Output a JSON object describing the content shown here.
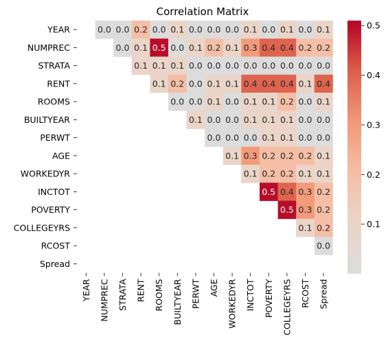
{
  "chart_data": {
    "type": "heatmap",
    "title": "Correlation Matrix",
    "labels": [
      "YEAR",
      "NUMPREC",
      "STRATA",
      "RENT",
      "ROOMS",
      "BUILTYEAR",
      "PERWT",
      "AGE",
      "WORKEDYR",
      "INCTOT",
      "POVERTY",
      "COLLEGEYRS",
      "RCOST",
      "Spread"
    ],
    "mask": "upper-triangle (diagonal and below hidden)",
    "values": [
      [
        null,
        0.0,
        0.0,
        0.2,
        0.0,
        0.1,
        0.0,
        0.0,
        0.0,
        0.1,
        0.0,
        0.1,
        0.0,
        0.1
      ],
      [
        null,
        null,
        0.0,
        0.1,
        0.5,
        0.0,
        0.1,
        0.2,
        0.1,
        0.3,
        0.4,
        0.4,
        0.2,
        0.2
      ],
      [
        null,
        null,
        null,
        0.1,
        0.1,
        0.1,
        0.0,
        0.0,
        0.0,
        0.0,
        0.0,
        0.0,
        0.0,
        0.0
      ],
      [
        null,
        null,
        null,
        null,
        0.1,
        0.2,
        0.0,
        0.1,
        0.1,
        0.4,
        0.4,
        0.4,
        0.1,
        0.4
      ],
      [
        null,
        null,
        null,
        null,
        null,
        0.0,
        0.0,
        0.1,
        0.0,
        0.1,
        0.1,
        0.2,
        0.0,
        0.1
      ],
      [
        null,
        null,
        null,
        null,
        null,
        null,
        0.1,
        0.0,
        0.0,
        0.1,
        0.1,
        0.1,
        0.0,
        0.0
      ],
      [
        null,
        null,
        null,
        null,
        null,
        null,
        null,
        0.0,
        0.0,
        0.0,
        0.1,
        0.1,
        0.0,
        0.0
      ],
      [
        null,
        null,
        null,
        null,
        null,
        null,
        null,
        null,
        0.1,
        0.3,
        0.2,
        0.2,
        0.2,
        0.1
      ],
      [
        null,
        null,
        null,
        null,
        null,
        null,
        null,
        null,
        null,
        0.1,
        0.2,
        0.2,
        0.1,
        0.1
      ],
      [
        null,
        null,
        null,
        null,
        null,
        null,
        null,
        null,
        null,
        null,
        0.5,
        0.4,
        0.3,
        0.2
      ],
      [
        null,
        null,
        null,
        null,
        null,
        null,
        null,
        null,
        null,
        null,
        null,
        0.5,
        0.3,
        0.2
      ],
      [
        null,
        null,
        null,
        null,
        null,
        null,
        null,
        null,
        null,
        null,
        null,
        null,
        0.1,
        0.2
      ],
      [
        null,
        null,
        null,
        null,
        null,
        null,
        null,
        null,
        null,
        null,
        null,
        null,
        null,
        0.0
      ],
      [
        null,
        null,
        null,
        null,
        null,
        null,
        null,
        null,
        null,
        null,
        null,
        null,
        null,
        null
      ]
    ],
    "colormap": "coolwarm",
    "colorbar": {
      "ticks": [
        0.1,
        0.2,
        0.3,
        0.4,
        0.5
      ],
      "tick_labels": [
        "0.1",
        "0.2",
        "0.3",
        "0.4",
        "0.5"
      ],
      "range": [
        0.0,
        0.51
      ]
    },
    "xlabel": "",
    "ylabel": ""
  },
  "colors": {
    "low": "#dddcdc",
    "mid": "#f4b89b",
    "high": "#b40426"
  }
}
